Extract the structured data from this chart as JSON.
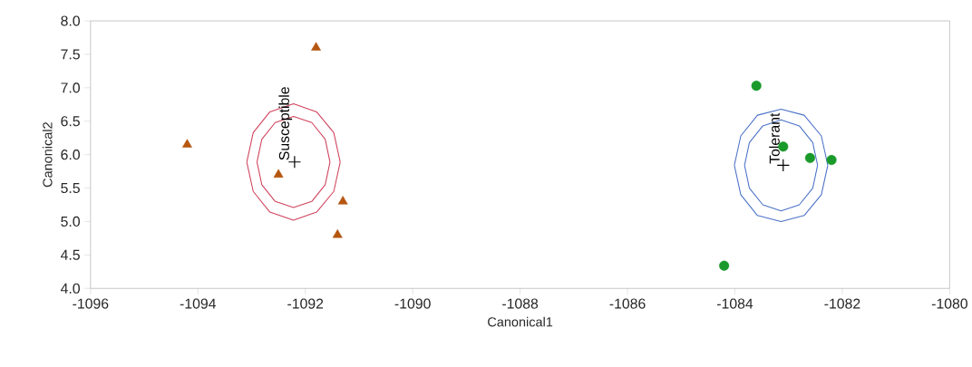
{
  "chart_data": {
    "type": "scatter",
    "xlabel": "Canonical1",
    "ylabel": "Canonical2",
    "xlim": [
      -1096,
      -1080
    ],
    "ylim": [
      4,
      8
    ],
    "xticks": [
      -1096,
      -1094,
      -1092,
      -1090,
      -1088,
      -1086,
      -1084,
      -1082,
      -1080
    ],
    "yticks": [
      {
        "value": 4,
        "label": "4.0"
      },
      {
        "value": 4.5,
        "label": "4.5"
      },
      {
        "value": 5,
        "label": "5.0"
      },
      {
        "value": 5.5,
        "label": "5.5"
      },
      {
        "value": 6,
        "label": "6.0"
      },
      {
        "value": 6.5,
        "label": "6.5"
      },
      {
        "value": 7,
        "label": "7.0"
      },
      {
        "value": 7.5,
        "label": "7.5"
      },
      {
        "value": 8,
        "label": "8.0"
      }
    ],
    "series": [
      {
        "type": "line",
        "marker": "none",
        "color": "#d0405a",
        "x": [
          -1092.9,
          -1092.81,
          -1092.56,
          -1092.22,
          -1091.88,
          -1091.63,
          -1091.54,
          null,
          -1092.9,
          -1092.81,
          -1092.56,
          -1092.22,
          -1091.88,
          -1091.63,
          -1091.54
        ],
        "values": [
          5.89,
          6.23,
          6.48,
          6.57,
          6.48,
          6.23,
          5.89,
          null,
          5.89,
          5.55,
          5.3,
          5.21,
          5.3,
          5.55,
          5.89
        ]
      },
      {
        "type": "line",
        "marker": "none",
        "color": "#d0405a",
        "x": [
          -1093.09,
          -1092.97,
          -1092.66,
          -1092.22,
          -1091.79,
          -1091.47,
          -1091.35,
          null,
          -1093.09,
          -1092.97,
          -1092.66,
          -1092.22,
          -1091.79,
          -1091.47,
          -1091.35
        ],
        "values": [
          5.89,
          6.33,
          6.64,
          6.76,
          6.64,
          6.33,
          5.89,
          null,
          5.89,
          5.45,
          5.14,
          5.02,
          5.14,
          5.45,
          5.89
        ]
      },
      {
        "type": "line",
        "marker": "none",
        "color": "#4a70c8",
        "x": [
          -1083.82,
          -1083.73,
          -1083.48,
          -1083.14,
          -1082.8,
          -1082.55,
          -1082.46,
          null,
          -1083.82,
          -1083.73,
          -1083.48,
          -1083.14,
          -1082.8,
          -1082.55,
          -1082.46
        ],
        "values": [
          5.84,
          6.18,
          6.43,
          6.52,
          6.43,
          6.18,
          5.84,
          null,
          5.84,
          5.5,
          5.25,
          5.16,
          5.25,
          5.5,
          5.84
        ]
      },
      {
        "type": "line",
        "marker": "none",
        "color": "#4a70c8",
        "x": [
          -1084.01,
          -1083.89,
          -1083.58,
          -1083.14,
          -1082.71,
          -1082.39,
          -1082.27,
          null,
          -1084.01,
          -1083.89,
          -1083.58,
          -1083.14,
          -1082.71,
          -1082.39,
          -1082.27
        ],
        "values": [
          5.84,
          6.28,
          6.59,
          6.68,
          6.59,
          6.28,
          5.84,
          null,
          5.84,
          5.4,
          5.09,
          5.0,
          5.09,
          5.4,
          5.84
        ]
      },
      {
        "marker": "triangle",
        "color": "#b5560f",
        "x": [
          -1094.2,
          -1091.8,
          -1092.5,
          -1091.3,
          -1091.4
        ],
        "values": [
          6.15,
          7.6,
          5.7,
          5.3,
          4.8
        ]
      },
      {
        "marker": "circle",
        "color": "#1a9a2a",
        "x": [
          -1083.6,
          -1083.1,
          -1082.6,
          -1082.2,
          -1084.2
        ],
        "values": [
          7.03,
          6.12,
          5.95,
          5.92,
          4.34
        ]
      },
      {
        "marker": "cross",
        "color": "#000000",
        "x": [
          -1092.2,
          -1083.1
        ],
        "values": [
          5.89,
          5.84
        ]
      }
    ],
    "annotations": [
      {
        "text": "Susceptible",
        "x": -1092.22,
        "y": 5.89
      },
      {
        "text": "Tolerant",
        "x": -1083.14,
        "y": 5.84
      }
    ]
  }
}
